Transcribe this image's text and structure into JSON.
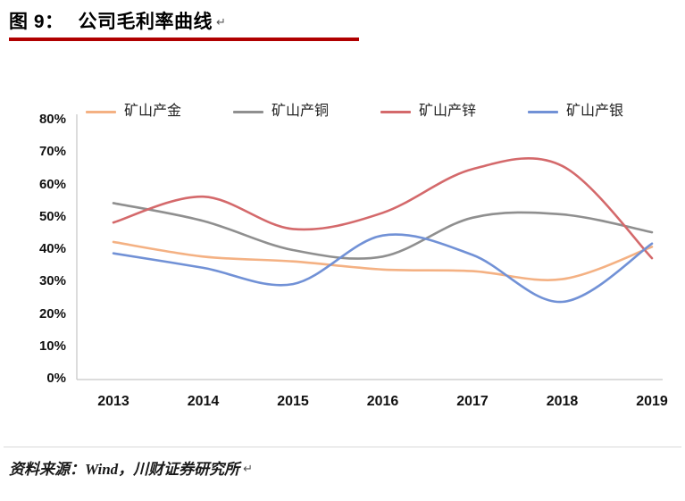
{
  "title": {
    "label": "图 9：",
    "text": "公司毛利率曲线",
    "return_mark": "↵"
  },
  "accent_color": "#b00000",
  "source": {
    "text": "资料来源：Wind，川财证券研究所",
    "return_mark": "↵"
  },
  "chart_data": {
    "type": "line",
    "title": "公司毛利率曲线",
    "smooth": true,
    "grid": false,
    "legend_position": "top",
    "axis_color": "#c6c6c6",
    "x": [
      "2013",
      "2014",
      "2015",
      "2016",
      "2017",
      "2018",
      "2019"
    ],
    "ylim": [
      0,
      80
    ],
    "ytick_step": 10,
    "ytick_labels": [
      "0%",
      "10%",
      "20%",
      "30%",
      "40%",
      "50%",
      "60%",
      "70%",
      "80%"
    ],
    "unit": "%",
    "series": [
      {
        "name": "矿山产金",
        "color": "#f4b183",
        "values": [
          42.5,
          38,
          36.5,
          34,
          33.5,
          31,
          41
        ]
      },
      {
        "name": "矿山产铜",
        "color": "#8f8f8f",
        "values": [
          54.5,
          49,
          40,
          38,
          50,
          51,
          45.5
        ]
      },
      {
        "name": "矿山产锌",
        "color": "#d4696b",
        "values": [
          48.5,
          56.5,
          46.5,
          51.5,
          65,
          66,
          37.5
        ]
      },
      {
        "name": "矿山产银",
        "color": "#7191d6",
        "values": [
          39,
          34.5,
          29.5,
          44.5,
          38.5,
          24,
          42
        ]
      }
    ]
  }
}
